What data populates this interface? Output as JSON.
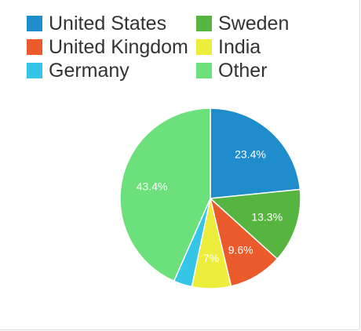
{
  "chart_data": {
    "type": "pie",
    "legend_position": "top-left",
    "slices": [
      {
        "label": "United States",
        "value": 23.4,
        "display": "23.4%",
        "color": "#1f8dcb"
      },
      {
        "label": "Sweden",
        "value": 13.3,
        "display": "13.3%",
        "color": "#56b440"
      },
      {
        "label": "United Kingdom",
        "value": 9.6,
        "display": "9.6%",
        "color": "#ea5a2b"
      },
      {
        "label": "India",
        "value": 7,
        "display": "7%",
        "color": "#eded3c"
      },
      {
        "label": "Germany",
        "value": 3.3,
        "display": "",
        "color": "#35c5e6"
      },
      {
        "label": "Other",
        "value": 43.4,
        "display": "43.4%",
        "color": "#6be07b"
      }
    ]
  }
}
